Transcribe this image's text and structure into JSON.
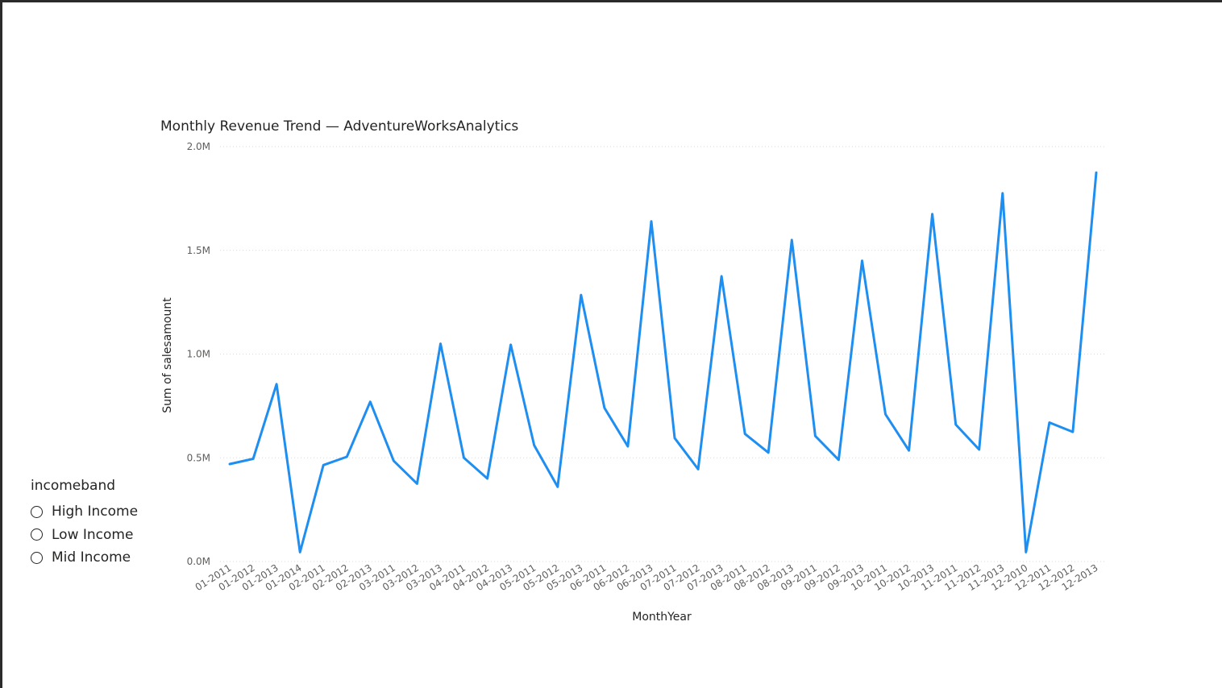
{
  "chart_title": "Monthly Revenue Trend — AdventureWorksAnalytics",
  "slicer": {
    "title": "incomeband",
    "items": [
      {
        "label": "High Income"
      },
      {
        "label": "Low Income"
      },
      {
        "label": "Mid Income"
      }
    ]
  },
  "chart_data": {
    "type": "line",
    "title": "Monthly Revenue Trend — AdventureWorksAnalytics",
    "xlabel": "MonthYear",
    "ylabel": "Sum of salesamount",
    "ylim": [
      0,
      2000000
    ],
    "yticks": [
      {
        "value": 0,
        "label": "0.0M"
      },
      {
        "value": 500000,
        "label": "0.5M"
      },
      {
        "value": 1000000,
        "label": "1.0M"
      },
      {
        "value": 1500000,
        "label": "1.5M"
      },
      {
        "value": 2000000,
        "label": "2.0M"
      }
    ],
    "grid": true,
    "color": "#1f8ef1",
    "categories": [
      "01-2011",
      "01-2012",
      "01-2013",
      "01-2014",
      "02-2011",
      "02-2012",
      "02-2013",
      "03-2011",
      "03-2012",
      "03-2013",
      "04-2011",
      "04-2012",
      "04-2013",
      "05-2011",
      "05-2012",
      "05-2013",
      "06-2011",
      "06-2012",
      "06-2013",
      "07-2011",
      "07-2012",
      "07-2013",
      "08-2011",
      "08-2012",
      "08-2013",
      "09-2011",
      "09-2012",
      "09-2013",
      "10-2011",
      "10-2012",
      "10-2013",
      "11-2011",
      "11-2012",
      "11-2013",
      "12-2010",
      "12-2011",
      "12-2012",
      "12-2013"
    ],
    "values": [
      470000,
      495000,
      855000,
      45000,
      465000,
      505000,
      770000,
      485000,
      375000,
      1050000,
      500000,
      400000,
      1045000,
      560000,
      360000,
      1285000,
      740000,
      555000,
      1640000,
      595000,
      445000,
      1375000,
      615000,
      525000,
      1550000,
      605000,
      490000,
      1450000,
      710000,
      535000,
      1675000,
      660000,
      540000,
      1775000,
      45000,
      670000,
      625000,
      1875000
    ]
  }
}
